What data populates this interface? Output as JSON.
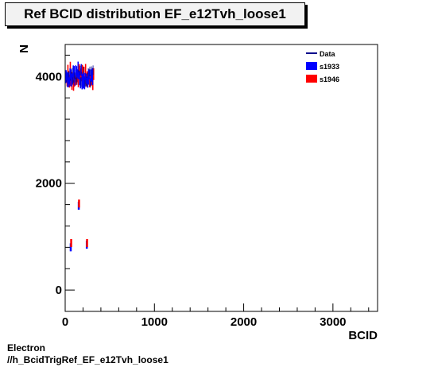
{
  "chart_data": {
    "type": "scatter",
    "title": "Ref BCID distribution EF_e12Tvh_loose1",
    "xlabel": "BCID",
    "ylabel": "N",
    "xlim": [
      0,
      3500
    ],
    "ylim": [
      -400,
      4600
    ],
    "xticks": [
      0,
      1000,
      2000,
      3000
    ],
    "yticks": [
      0,
      2000,
      4000
    ],
    "legend_position": "top-right",
    "series": [
      {
        "name": "Data",
        "kind": "line",
        "color": "#00008b"
      },
      {
        "name": "s1933",
        "kind": "box",
        "color": "#0000ff"
      },
      {
        "name": "s1946",
        "kind": "box",
        "color": "#ff0000"
      }
    ],
    "points": [
      {
        "x": 60,
        "y": 800,
        "series": "s1933"
      },
      {
        "x": 65,
        "y": 880,
        "series": "s1946"
      },
      {
        "x": 150,
        "y": 1580,
        "series": "s1933"
      },
      {
        "x": 153,
        "y": 1620,
        "series": "s1946"
      },
      {
        "x": 240,
        "y": 850,
        "series": "s1933"
      },
      {
        "x": 243,
        "y": 880,
        "series": "s1946"
      }
    ],
    "dense_band": {
      "x_range": [
        10,
        310
      ],
      "y_center": 4000,
      "y_spread": 250
    }
  },
  "footer": {
    "line1": "Electron",
    "line2": "//h_BcidTrigRef_EF_e12Tvh_loose1"
  }
}
